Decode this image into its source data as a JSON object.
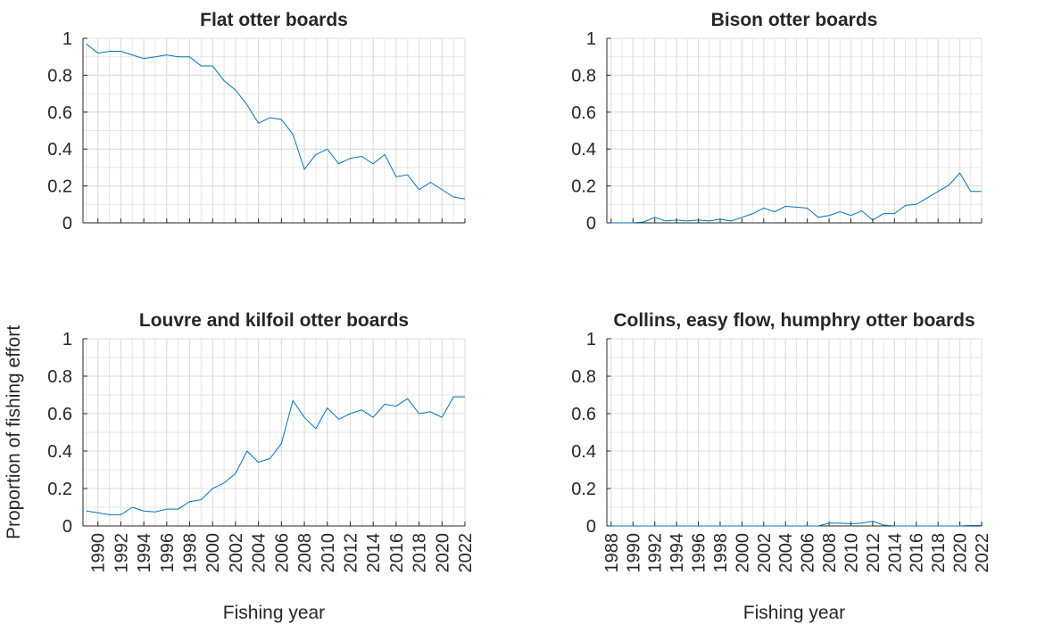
{
  "ylabel": "Proportion of fishing effort",
  "chart_data": [
    {
      "type": "line",
      "title": "Flat otter boards",
      "color": "#0072bd",
      "grid": true,
      "show_xtick_labels": false,
      "x": [
        1989,
        1990,
        1991,
        1992,
        1993,
        1994,
        1995,
        1996,
        1997,
        1998,
        1999,
        2000,
        2001,
        2002,
        2003,
        2004,
        2005,
        2006,
        2007,
        2008,
        2009,
        2010,
        2011,
        2012,
        2013,
        2014,
        2015,
        2016,
        2017,
        2018,
        2019,
        2020,
        2021,
        2022
      ],
      "values": [
        0.97,
        0.92,
        0.93,
        0.93,
        0.91,
        0.89,
        0.9,
        0.91,
        0.9,
        0.9,
        0.85,
        0.85,
        0.77,
        0.72,
        0.64,
        0.54,
        0.57,
        0.56,
        0.48,
        0.29,
        0.37,
        0.4,
        0.32,
        0.35,
        0.36,
        0.32,
        0.37,
        0.25,
        0.26,
        0.18,
        0.22,
        0.18,
        0.14,
        0.13
      ],
      "xlim": [
        1988.7,
        2022
      ],
      "xticks": [
        1990,
        1992,
        1994,
        1996,
        1998,
        2000,
        2002,
        2004,
        2006,
        2008,
        2010,
        2012,
        2014,
        2016,
        2018,
        2020,
        2022
      ],
      "ylim": [
        0,
        1
      ],
      "yticks": [
        0,
        0.2,
        0.4,
        0.6,
        0.8,
        1
      ]
    },
    {
      "type": "line",
      "title": "Bison otter boards",
      "color": "#0072bd",
      "grid": true,
      "show_xtick_labels": false,
      "x": [
        1988,
        1989,
        1990,
        1991,
        1992,
        1993,
        1994,
        1995,
        1996,
        1997,
        1998,
        1999,
        2000,
        2001,
        2002,
        2003,
        2004,
        2005,
        2006,
        2007,
        2008,
        2009,
        2010,
        2011,
        2012,
        2013,
        2014,
        2015,
        2016,
        2017,
        2018,
        2019,
        2020,
        2021,
        2022
      ],
      "values": [
        0,
        0,
        0,
        0.005,
        0.03,
        0.01,
        0.015,
        0.01,
        0.015,
        0.01,
        0.02,
        0.01,
        0.03,
        0.05,
        0.08,
        0.06,
        0.09,
        0.085,
        0.08,
        0.03,
        0.04,
        0.06,
        0.04,
        0.065,
        0.015,
        0.05,
        0.05,
        0.095,
        0.1,
        0.135,
        0.17,
        0.205,
        0.27,
        0.17,
        0.17
      ],
      "xlim": [
        1987.6,
        2022
      ],
      "xticks": [
        1988,
        1990,
        1992,
        1994,
        1996,
        1998,
        2000,
        2002,
        2004,
        2006,
        2008,
        2010,
        2012,
        2014,
        2016,
        2018,
        2020,
        2022
      ],
      "ylim": [
        0,
        1
      ],
      "yticks": [
        0,
        0.2,
        0.4,
        0.6,
        0.8,
        1
      ]
    },
    {
      "type": "line",
      "title": "Louvre and kilfoil otter boards",
      "color": "#0072bd",
      "grid": true,
      "show_xtick_labels": true,
      "xlabel": "Fishing year",
      "x": [
        1989,
        1990,
        1991,
        1992,
        1993,
        1994,
        1995,
        1996,
        1997,
        1998,
        1999,
        2000,
        2001,
        2002,
        2003,
        2004,
        2005,
        2006,
        2007,
        2008,
        2009,
        2010,
        2011,
        2012,
        2013,
        2014,
        2015,
        2016,
        2017,
        2018,
        2019,
        2020,
        2021,
        2022
      ],
      "values": [
        0.08,
        0.07,
        0.06,
        0.06,
        0.1,
        0.08,
        0.075,
        0.09,
        0.09,
        0.13,
        0.14,
        0.2,
        0.23,
        0.28,
        0.4,
        0.34,
        0.36,
        0.44,
        0.67,
        0.58,
        0.52,
        0.63,
        0.57,
        0.6,
        0.62,
        0.58,
        0.65,
        0.64,
        0.68,
        0.6,
        0.61,
        0.58,
        0.69,
        0.69
      ],
      "xlim": [
        1988.7,
        2022
      ],
      "xticks": [
        1990,
        1992,
        1994,
        1996,
        1998,
        2000,
        2002,
        2004,
        2006,
        2008,
        2010,
        2012,
        2014,
        2016,
        2018,
        2020,
        2022
      ],
      "ylim": [
        0,
        1
      ],
      "yticks": [
        0,
        0.2,
        0.4,
        0.6,
        0.8,
        1
      ]
    },
    {
      "type": "line",
      "title": "Collins, easy flow, humphry otter boards",
      "color": "#0072bd",
      "grid": true,
      "show_xtick_labels": true,
      "xlabel": "Fishing year",
      "x": [
        1988,
        1989,
        1990,
        1991,
        1992,
        1993,
        1994,
        1995,
        1996,
        1997,
        1998,
        1999,
        2000,
        2001,
        2002,
        2003,
        2004,
        2005,
        2006,
        2007,
        2008,
        2009,
        2010,
        2011,
        2012,
        2013,
        2014,
        2015,
        2016,
        2017,
        2018,
        2019,
        2020,
        2021,
        2022
      ],
      "values": [
        0,
        0,
        0,
        0,
        0,
        0,
        0,
        0,
        0,
        0,
        0,
        0,
        0,
        0,
        0,
        0,
        0,
        0,
        0,
        0,
        0.015,
        0.015,
        0.012,
        0.015,
        0.025,
        0.005,
        0,
        0,
        0,
        0,
        0,
        0,
        0,
        0.003,
        0.003
      ],
      "xlim": [
        1987.6,
        2022
      ],
      "xticks": [
        1988,
        1990,
        1992,
        1994,
        1996,
        1998,
        2000,
        2002,
        2004,
        2006,
        2008,
        2010,
        2012,
        2014,
        2016,
        2018,
        2020,
        2022
      ],
      "ylim": [
        0,
        1
      ],
      "yticks": [
        0,
        0.2,
        0.4,
        0.6,
        0.8,
        1
      ]
    }
  ]
}
